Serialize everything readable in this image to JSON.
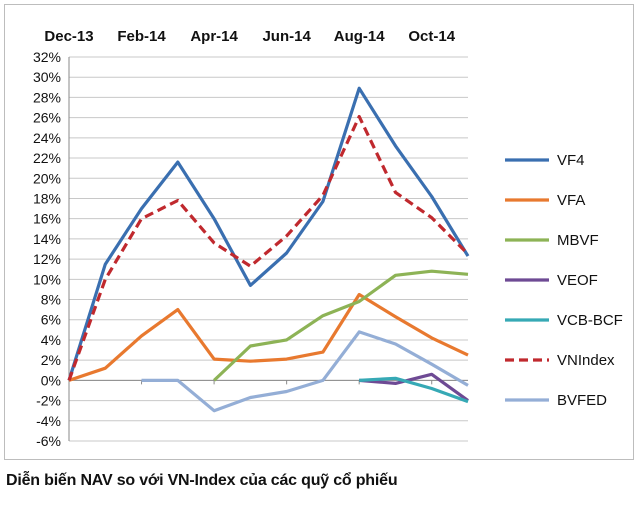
{
  "caption": "Diễn biến NAV so với VN-Index của các quỹ cổ phiếu",
  "chart_data": {
    "type": "line",
    "title": "",
    "xlabel": "",
    "ylabel": "",
    "x_tick_labels": [
      "Dec-13",
      "Feb-14",
      "Apr-14",
      "Jun-14",
      "Aug-14",
      "Oct-14"
    ],
    "x_tick_positions": [
      0,
      2,
      4,
      6,
      8,
      10
    ],
    "x_range": [
      0,
      11
    ],
    "ylim": [
      -6,
      32
    ],
    "y_step": 2,
    "y_tick_suffix": "%",
    "grid": true,
    "x_axis_position": "top",
    "legend_position": "right",
    "series": [
      {
        "name": "VF4",
        "color": "#3a6fb0",
        "dash": "solid",
        "points": [
          [
            0,
            0
          ],
          [
            1,
            11.5
          ],
          [
            2,
            17
          ],
          [
            3,
            21.6
          ],
          [
            4,
            16
          ],
          [
            5,
            9.4
          ],
          [
            6,
            12.6
          ],
          [
            7,
            17.7
          ],
          [
            8,
            28.9
          ],
          [
            9,
            23.2
          ],
          [
            10,
            18.2
          ],
          [
            11,
            12.3
          ]
        ]
      },
      {
        "name": "VFA",
        "color": "#e8792f",
        "dash": "solid",
        "points": [
          [
            0,
            0
          ],
          [
            1,
            1.2
          ],
          [
            2,
            4.4
          ],
          [
            3,
            7
          ],
          [
            4,
            2.1
          ],
          [
            5,
            1.9
          ],
          [
            6,
            2.1
          ],
          [
            7,
            2.8
          ],
          [
            8,
            8.5
          ],
          [
            9,
            6.3
          ],
          [
            10,
            4.2
          ],
          [
            11,
            2.5
          ]
        ]
      },
      {
        "name": "MBVF",
        "color": "#8db356",
        "dash": "solid",
        "points": [
          [
            4,
            0
          ],
          [
            5,
            3.4
          ],
          [
            6,
            4
          ],
          [
            7,
            6.4
          ],
          [
            8,
            7.8
          ],
          [
            9,
            10.4
          ],
          [
            10,
            10.8
          ],
          [
            11,
            10.5
          ]
        ]
      },
      {
        "name": "VEOF",
        "color": "#6e4a94",
        "dash": "solid",
        "points": [
          [
            8,
            0
          ],
          [
            9,
            -0.3
          ],
          [
            10,
            0.6
          ],
          [
            11,
            -2
          ]
        ]
      },
      {
        "name": "VCB-BCF",
        "color": "#36a9b5",
        "dash": "solid",
        "points": [
          [
            8,
            0
          ],
          [
            9,
            0.2
          ],
          [
            10,
            -0.8
          ],
          [
            11,
            -2.1
          ]
        ]
      },
      {
        "name": "VNIndex",
        "color": "#c0292e",
        "dash": "dashed",
        "points": [
          [
            0,
            0
          ],
          [
            1,
            10
          ],
          [
            2,
            16
          ],
          [
            3,
            17.8
          ],
          [
            4,
            13.6
          ],
          [
            5,
            11.3
          ],
          [
            6,
            14.3
          ],
          [
            7,
            18.3
          ],
          [
            8,
            26.1
          ],
          [
            9,
            18.6
          ],
          [
            10,
            16.1
          ],
          [
            11,
            12.5
          ]
        ]
      },
      {
        "name": "BVFED",
        "color": "#94aed6",
        "dash": "solid",
        "points": [
          [
            2,
            0
          ],
          [
            3,
            0
          ],
          [
            4,
            -3
          ],
          [
            5,
            -1.7
          ],
          [
            6,
            -1.1
          ],
          [
            7,
            0
          ],
          [
            8,
            4.8
          ],
          [
            9,
            3.6
          ],
          [
            10,
            1.6
          ],
          [
            11,
            -0.5
          ]
        ]
      }
    ]
  }
}
